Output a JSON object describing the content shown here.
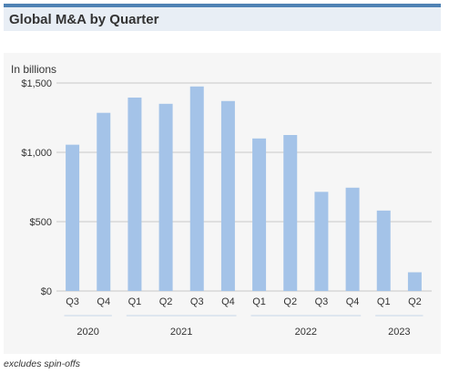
{
  "header": {
    "title": "Global M&A by Quarter"
  },
  "footnote": "excludes spin-offs",
  "colors": {
    "bar": "#a4c3e8",
    "header_bar": "#4f82b4",
    "header_bg": "#e8eef5",
    "panel_bg": "#f6f6f6",
    "gridline": "#c8c8c8",
    "group_line": "#c5d6e8"
  },
  "chart_data": {
    "type": "bar",
    "title": "",
    "ylabel": "In billions",
    "xlabel": "",
    "categories": [
      "Q3",
      "Q4",
      "Q1",
      "Q2",
      "Q3",
      "Q4",
      "Q1",
      "Q2",
      "Q3",
      "Q4",
      "Q1",
      "Q2"
    ],
    "category_groups": [
      {
        "label": "2020",
        "count": 2
      },
      {
        "label": "2021",
        "count": 4
      },
      {
        "label": "2022",
        "count": 4
      },
      {
        "label": "2023",
        "count": 2
      }
    ],
    "values": [
      1055,
      1285,
      1395,
      1350,
      1475,
      1370,
      1100,
      1125,
      715,
      745,
      580,
      135
    ],
    "ylim": [
      0,
      1500
    ],
    "yticks": [
      0,
      500,
      1000,
      1500
    ],
    "ytick_labels": [
      "$0",
      "$500",
      "$1,000",
      "$1,500"
    ],
    "grid": true,
    "legend": "none"
  }
}
